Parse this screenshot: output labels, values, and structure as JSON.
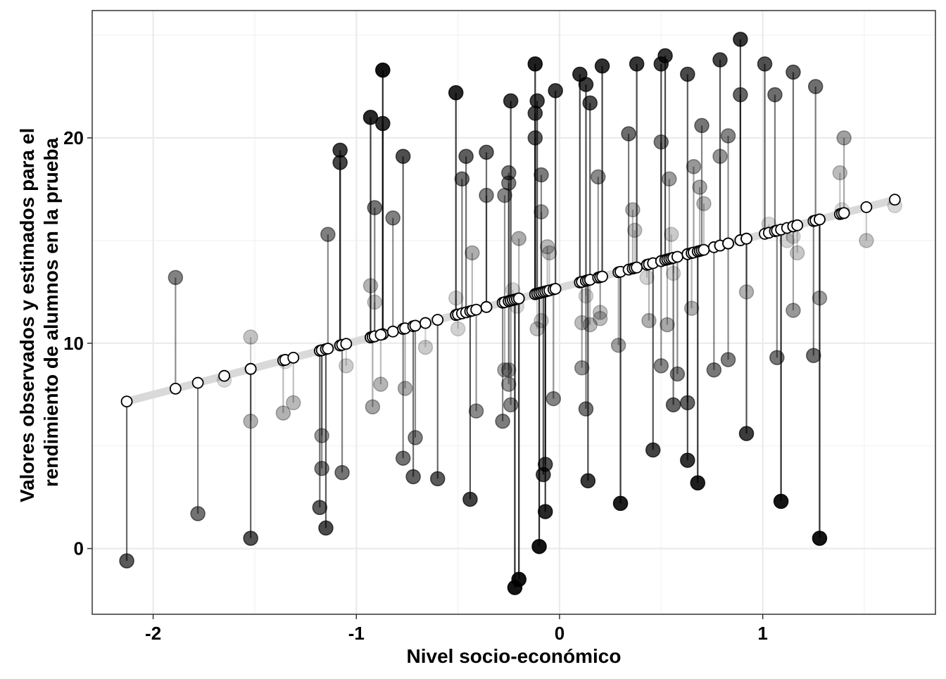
{
  "chart_data": {
    "type": "scatter",
    "title": "",
    "xlabel": "Nivel socio-económico",
    "ylabel_lines": [
      "Valores observados y estimados para el",
      "rendimiento de alumnos en la prueba"
    ],
    "xlim": [
      -2.3,
      1.85
    ],
    "ylim": [
      -3.2,
      26.2
    ],
    "x_ticks": [
      -2,
      -1,
      0,
      1
    ],
    "x_tick_labels": [
      "-2",
      "-1",
      "0",
      "1"
    ],
    "y_ticks": [
      0,
      10,
      20
    ],
    "y_tick_labels": [
      "0",
      "10",
      "20"
    ],
    "grid": true,
    "legend": "none",
    "regression_line": {
      "intercept": 12.7,
      "slope": 2.6,
      "x_range": [
        -2.13,
        1.65
      ]
    },
    "points": [
      {
        "x": -2.13,
        "obs": -0.6
      },
      {
        "x": -1.89,
        "obs": 13.2
      },
      {
        "x": -1.78,
        "obs": 1.7
      },
      {
        "x": -1.65,
        "obs": 8.2
      },
      {
        "x": -1.52,
        "obs": 10.3
      },
      {
        "x": -1.52,
        "obs": 6.2
      },
      {
        "x": -1.52,
        "obs": 0.5
      },
      {
        "x": -1.36,
        "obs": 6.6
      },
      {
        "x": -1.35,
        "obs": 9.1
      },
      {
        "x": -1.31,
        "obs": 7.1
      },
      {
        "x": -1.18,
        "obs": 2.0
      },
      {
        "x": -1.17,
        "obs": 5.5
      },
      {
        "x": -1.17,
        "obs": 3.9
      },
      {
        "x": -1.15,
        "obs": 1.0
      },
      {
        "x": -1.14,
        "obs": 15.3
      },
      {
        "x": -1.08,
        "obs": 19.4
      },
      {
        "x": -1.08,
        "obs": 18.8
      },
      {
        "x": -1.07,
        "obs": 3.7
      },
      {
        "x": -1.05,
        "obs": 8.9
      },
      {
        "x": -0.93,
        "obs": 21.0
      },
      {
        "x": -0.93,
        "obs": 12.8
      },
      {
        "x": -0.92,
        "obs": 6.9
      },
      {
        "x": -0.91,
        "obs": 12.0
      },
      {
        "x": -0.91,
        "obs": 16.6
      },
      {
        "x": -0.87,
        "obs": 23.3
      },
      {
        "x": -0.87,
        "obs": 20.7
      },
      {
        "x": -0.88,
        "obs": 8.0
      },
      {
        "x": -0.82,
        "obs": 16.1
      },
      {
        "x": -0.77,
        "obs": 19.1
      },
      {
        "x": -0.77,
        "obs": 4.4
      },
      {
        "x": -0.76,
        "obs": 7.8
      },
      {
        "x": -0.72,
        "obs": 3.5
      },
      {
        "x": -0.71,
        "obs": 5.4
      },
      {
        "x": -0.66,
        "obs": 9.8
      },
      {
        "x": -0.6,
        "obs": 3.4
      },
      {
        "x": -0.51,
        "obs": 22.2
      },
      {
        "x": -0.51,
        "obs": 12.2
      },
      {
        "x": -0.5,
        "obs": 10.7
      },
      {
        "x": -0.48,
        "obs": 18.0
      },
      {
        "x": -0.46,
        "obs": 19.1
      },
      {
        "x": -0.44,
        "obs": 2.4
      },
      {
        "x": -0.43,
        "obs": 14.4
      },
      {
        "x": -0.41,
        "obs": 6.7
      },
      {
        "x": -0.36,
        "obs": 19.3
      },
      {
        "x": -0.36,
        "obs": 17.2
      },
      {
        "x": -0.28,
        "obs": 6.2
      },
      {
        "x": -0.27,
        "obs": 17.2
      },
      {
        "x": -0.27,
        "obs": 8.7
      },
      {
        "x": -0.25,
        "obs": 18.3
      },
      {
        "x": -0.25,
        "obs": 17.8
      },
      {
        "x": -0.25,
        "obs": 8.7
      },
      {
        "x": -0.25,
        "obs": 8.0
      },
      {
        "x": -0.24,
        "obs": 21.8
      },
      {
        "x": -0.24,
        "obs": 7.0
      },
      {
        "x": -0.23,
        "obs": 12.6
      },
      {
        "x": -0.22,
        "obs": -1.9
      },
      {
        "x": -0.21,
        "obs": 11.8
      },
      {
        "x": -0.2,
        "obs": -1.5
      },
      {
        "x": -0.2,
        "obs": 15.1
      },
      {
        "x": -0.12,
        "obs": 23.6
      },
      {
        "x": -0.12,
        "obs": 21.2
      },
      {
        "x": -0.12,
        "obs": 20.0
      },
      {
        "x": -0.11,
        "obs": 21.8
      },
      {
        "x": -0.11,
        "obs": 10.7
      },
      {
        "x": -0.1,
        "obs": 0.1
      },
      {
        "x": -0.09,
        "obs": 18.2
      },
      {
        "x": -0.09,
        "obs": 16.4
      },
      {
        "x": -0.09,
        "obs": 11.1
      },
      {
        "x": -0.08,
        "obs": 3.6
      },
      {
        "x": -0.07,
        "obs": 1.8
      },
      {
        "x": -0.07,
        "obs": 4.1
      },
      {
        "x": -0.06,
        "obs": 14.7
      },
      {
        "x": -0.05,
        "obs": 14.4
      },
      {
        "x": -0.03,
        "obs": 7.3
      },
      {
        "x": -0.02,
        "obs": 22.3
      },
      {
        "x": 0.1,
        "obs": 23.1
      },
      {
        "x": 0.11,
        "obs": 11.0
      },
      {
        "x": 0.11,
        "obs": 8.8
      },
      {
        "x": 0.13,
        "obs": 22.6
      },
      {
        "x": 0.13,
        "obs": 12.3
      },
      {
        "x": 0.13,
        "obs": 6.8
      },
      {
        "x": 0.14,
        "obs": 3.3
      },
      {
        "x": 0.15,
        "obs": 21.7
      },
      {
        "x": 0.15,
        "obs": 10.9
      },
      {
        "x": 0.19,
        "obs": 18.1
      },
      {
        "x": 0.2,
        "obs": 11.2
      },
      {
        "x": 0.2,
        "obs": 11.5
      },
      {
        "x": 0.21,
        "obs": 23.5
      },
      {
        "x": 0.29,
        "obs": 9.9
      },
      {
        "x": 0.3,
        "obs": 2.2
      },
      {
        "x": 0.34,
        "obs": 20.2
      },
      {
        "x": 0.36,
        "obs": 16.5
      },
      {
        "x": 0.37,
        "obs": 15.5
      },
      {
        "x": 0.38,
        "obs": 23.6
      },
      {
        "x": 0.43,
        "obs": 13.2
      },
      {
        "x": 0.44,
        "obs": 11.1
      },
      {
        "x": 0.46,
        "obs": 4.8
      },
      {
        "x": 0.5,
        "obs": 23.6
      },
      {
        "x": 0.5,
        "obs": 19.8
      },
      {
        "x": 0.5,
        "obs": 8.9
      },
      {
        "x": 0.52,
        "obs": 24.0
      },
      {
        "x": 0.53,
        "obs": 10.9
      },
      {
        "x": 0.54,
        "obs": 18.0
      },
      {
        "x": 0.55,
        "obs": 15.3
      },
      {
        "x": 0.56,
        "obs": 13.4
      },
      {
        "x": 0.56,
        "obs": 7.0
      },
      {
        "x": 0.58,
        "obs": 8.5
      },
      {
        "x": 0.63,
        "obs": 23.1
      },
      {
        "x": 0.63,
        "obs": 7.1
      },
      {
        "x": 0.63,
        "obs": 4.3
      },
      {
        "x": 0.65,
        "obs": 11.7
      },
      {
        "x": 0.66,
        "obs": 18.6
      },
      {
        "x": 0.68,
        "obs": 3.2
      },
      {
        "x": 0.69,
        "obs": 17.6
      },
      {
        "x": 0.7,
        "obs": 20.6
      },
      {
        "x": 0.71,
        "obs": 16.8
      },
      {
        "x": 0.76,
        "obs": 8.7
      },
      {
        "x": 0.79,
        "obs": 19.1
      },
      {
        "x": 0.79,
        "obs": 23.8
      },
      {
        "x": 0.83,
        "obs": 20.1
      },
      {
        "x": 0.83,
        "obs": 9.2
      },
      {
        "x": 0.89,
        "obs": 22.1
      },
      {
        "x": 0.89,
        "obs": 24.8
      },
      {
        "x": 0.92,
        "obs": 12.5
      },
      {
        "x": 0.92,
        "obs": 5.6
      },
      {
        "x": 1.01,
        "obs": 23.6
      },
      {
        "x": 1.03,
        "obs": 15.8
      },
      {
        "x": 1.06,
        "obs": 22.1
      },
      {
        "x": 1.07,
        "obs": 9.3
      },
      {
        "x": 1.09,
        "obs": 2.3
      },
      {
        "x": 1.12,
        "obs": 15.0
      },
      {
        "x": 1.15,
        "obs": 23.2
      },
      {
        "x": 1.15,
        "obs": 15.2
      },
      {
        "x": 1.15,
        "obs": 11.6
      },
      {
        "x": 1.17,
        "obs": 14.4
      },
      {
        "x": 1.25,
        "obs": 9.4
      },
      {
        "x": 1.26,
        "obs": 22.5
      },
      {
        "x": 1.28,
        "obs": 12.2
      },
      {
        "x": 1.28,
        "obs": 0.5
      },
      {
        "x": 1.38,
        "obs": 18.3
      },
      {
        "x": 1.39,
        "obs": 16.5
      },
      {
        "x": 1.4,
        "obs": 20.0
      },
      {
        "x": 1.51,
        "obs": 15.0
      },
      {
        "x": 1.65,
        "obs": 16.7
      }
    ]
  }
}
